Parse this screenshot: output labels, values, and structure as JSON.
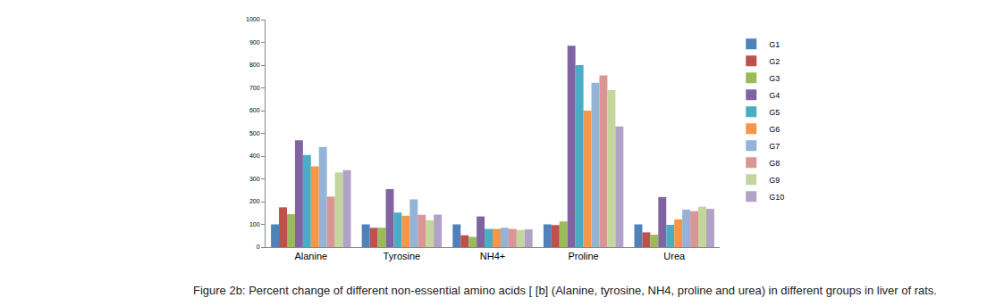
{
  "chart_data": {
    "type": "bar",
    "title": "Figure 2b: Percent change of different non-essential amino acids [ [b] (Alanine, tyrosine, NH4, proline and urea) in different groups in liver of rats.",
    "categories": [
      "Alanine",
      "Tyrosine",
      "NH4+",
      "Proline",
      "Urea"
    ],
    "series": [
      {
        "name": "G1",
        "color": "#4F81BD",
        "values": [
          100,
          100,
          100,
          100,
          100
        ]
      },
      {
        "name": "G2",
        "color": "#C0504D",
        "values": [
          175,
          85,
          52,
          97,
          65
        ]
      },
      {
        "name": "G3",
        "color": "#9BBB59",
        "values": [
          145,
          85,
          45,
          113,
          55
        ]
      },
      {
        "name": "G4",
        "color": "#8064A2",
        "values": [
          470,
          255,
          135,
          885,
          220
        ]
      },
      {
        "name": "G5",
        "color": "#4BACC6",
        "values": [
          405,
          152,
          80,
          800,
          98
        ]
      },
      {
        "name": "G6",
        "color": "#F79646",
        "values": [
          355,
          138,
          80,
          600,
          122
        ]
      },
      {
        "name": "G7",
        "color": "#95B3D7",
        "values": [
          440,
          210,
          85,
          723,
          165
        ]
      },
      {
        "name": "G8",
        "color": "#D99694",
        "values": [
          222,
          142,
          80,
          755,
          158
        ]
      },
      {
        "name": "G9",
        "color": "#C3D69B",
        "values": [
          328,
          118,
          75,
          690,
          178
        ]
      },
      {
        "name": "G10",
        "color": "#B2A2C7",
        "values": [
          338,
          143,
          78,
          530,
          168
        ]
      }
    ],
    "ylim": [
      0,
      1000
    ],
    "yticks": [
      0,
      100,
      200,
      300,
      400,
      500,
      600,
      700,
      800,
      900,
      1000
    ],
    "grid": false,
    "legend": "right"
  }
}
